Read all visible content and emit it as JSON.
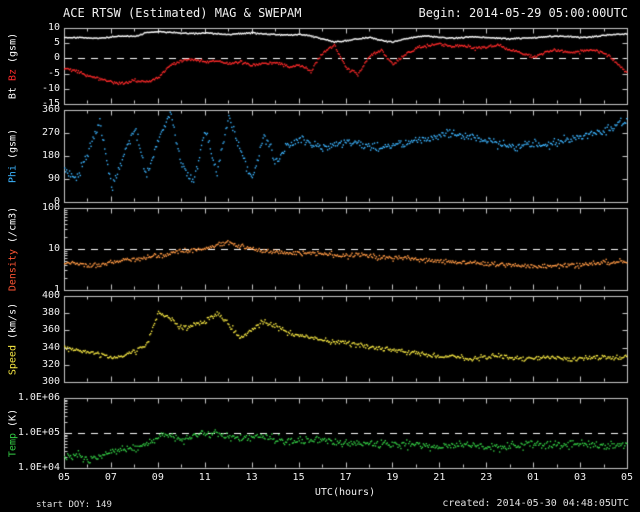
{
  "footer": {
    "start_doy": "start DOY: 149",
    "created": "created: 2014-05-30 04:48:05UTC"
  },
  "chart_data": {
    "type": "scatter",
    "title": "ACE RTSW (Estimated) MAG & SWEPAM",
    "begin": "Begin: 2014-05-29 05:00:00UTC",
    "xlabel": "UTC(hours)",
    "x_start_hour": 5,
    "x_end_hour": 29,
    "x_major_ticks": [
      "05",
      "07",
      "09",
      "11",
      "13",
      "15",
      "17",
      "19",
      "21",
      "23",
      "01",
      "03",
      "05"
    ],
    "grid": false,
    "background": "#000000",
    "frame_color": "#c8c8c8",
    "panels": [
      {
        "id": "mag",
        "scale": "linear",
        "ylim": [
          -15,
          10
        ],
        "dashed_y": 0,
        "yticks": [
          {
            "v": 10,
            "label": "10"
          },
          {
            "v": 5,
            "label": "5"
          },
          {
            "v": 0,
            "label": "0"
          },
          {
            "v": -5,
            "label": "-5"
          },
          {
            "v": -10,
            "label": "-10"
          },
          {
            "v": -15,
            "label": "-15"
          }
        ],
        "ylabel_parts": [
          {
            "text": "Bt ",
            "color": "#ffffff"
          },
          {
            "text": "Bz ",
            "color": "#ff2a2a"
          },
          {
            "text": "(gsm)",
            "color": "#ffffff"
          }
        ],
        "series": [
          {
            "name": "Bt",
            "color": "#ffffff",
            "noise": 0.2,
            "values": [
              7.0,
              7.1,
              6.9,
              6.8,
              7.3,
              7.6,
              7.4,
              8.7,
              9.0,
              8.8,
              8.5,
              8.4,
              8.6,
              8.3,
              8.1,
              8.4,
              8.6,
              8.3,
              8.1,
              7.9,
              8.1,
              7.6,
              6.6,
              5.6,
              6.1,
              6.6,
              7.1,
              6.1,
              5.6,
              6.6,
              7.3,
              7.6,
              7.1,
              6.9,
              7.1,
              7.3,
              7.1,
              6.9,
              6.6,
              6.9,
              7.1,
              7.3,
              7.6,
              7.4,
              7.1,
              7.3,
              7.9,
              8.1,
              8.3
            ]
          },
          {
            "name": "Bz",
            "color": "#ff2a2a",
            "noise": 0.5,
            "values": [
              -3.0,
              -4.0,
              -5.5,
              -6.5,
              -7.5,
              -8.0,
              -7.0,
              -7.6,
              -6.0,
              -2.0,
              -0.5,
              0.0,
              -1.0,
              -0.6,
              -1.5,
              -1.0,
              -2.0,
              -1.5,
              -1.0,
              -2.5,
              -2.0,
              -4.0,
              2.0,
              4.5,
              -3.0,
              -5.0,
              1.0,
              3.0,
              -2.0,
              1.5,
              3.5,
              4.5,
              5.0,
              4.0,
              4.5,
              3.5,
              4.0,
              4.5,
              3.0,
              2.0,
              0.5,
              2.5,
              3.0,
              2.0,
              2.5,
              3.0,
              2.0,
              -1.0,
              -5.0
            ]
          }
        ]
      },
      {
        "id": "phi",
        "scale": "linear",
        "ylim": [
          0,
          360
        ],
        "dashed_y": null,
        "yticks": [
          {
            "v": 360,
            "label": "360"
          },
          {
            "v": 270,
            "label": "270"
          },
          {
            "v": 180,
            "label": "180"
          },
          {
            "v": 90,
            "label": "90"
          },
          {
            "v": 0,
            "label": "0"
          }
        ],
        "ylabel_parts": [
          {
            "text": "Phi ",
            "color": "#3cb4ff"
          },
          {
            "text": "(gsm)",
            "color": "#ffffff"
          }
        ],
        "series": [
          {
            "name": "Phi",
            "color": "#3cb4ff",
            "noise": 18,
            "values": [
              135,
              90,
              200,
              320,
              60,
              180,
              300,
              100,
              250,
              350,
              150,
              80,
              280,
              120,
              330,
              200,
              90,
              270,
              160,
              220,
              250,
              230,
              210,
              225,
              240,
              230,
              220,
              215,
              225,
              235,
              245,
              255,
              265,
              270,
              260,
              250,
              240,
              230,
              225,
              220,
              230,
              225,
              235,
              245,
              260,
              270,
              280,
              300,
              315
            ]
          }
        ]
      },
      {
        "id": "density",
        "scale": "log",
        "ylim": [
          1,
          100
        ],
        "dashed_y": 10,
        "yticks": [
          {
            "v": 100,
            "label": "100"
          },
          {
            "v": 10,
            "label": "10"
          },
          {
            "v": 1,
            "label": "1"
          }
        ],
        "ylabel_parts": [
          {
            "text": "Density ",
            "color": "#ff5533"
          },
          {
            "text": "(/cm3)",
            "color": "#ffffff"
          }
        ],
        "series": [
          {
            "name": "Density",
            "color": "#ff9944",
            "noise": 0.06,
            "values": [
              5.0,
              4.5,
              4.0,
              4.5,
              5.0,
              5.5,
              6.0,
              6.5,
              7.0,
              8.0,
              9.0,
              10.0,
              11.0,
              13.0,
              15.0,
              12.0,
              10.0,
              9.5,
              9.0,
              8.5,
              8.0,
              8.5,
              8.0,
              7.5,
              7.0,
              7.5,
              7.0,
              6.5,
              6.0,
              6.5,
              6.0,
              5.5,
              5.5,
              5.0,
              5.0,
              4.8,
              4.5,
              4.5,
              4.2,
              4.0,
              4.0,
              3.8,
              4.0,
              4.2,
              4.0,
              4.5,
              4.8,
              5.0,
              5.2
            ]
          }
        ]
      },
      {
        "id": "speed",
        "scale": "linear",
        "ylim": [
          300,
          400
        ],
        "dashed_y": null,
        "yticks": [
          {
            "v": 400,
            "label": "400"
          },
          {
            "v": 380,
            "label": "380"
          },
          {
            "v": 360,
            "label": "360"
          },
          {
            "v": 340,
            "label": "340"
          },
          {
            "v": 320,
            "label": "320"
          },
          {
            "v": 300,
            "label": "300"
          }
        ],
        "ylabel_parts": [
          {
            "text": "Speed ",
            "color": "#f5e642"
          },
          {
            "text": "(km/s)",
            "color": "#ffffff"
          }
        ],
        "series": [
          {
            "name": "Speed",
            "color": "#f5e642",
            "noise": 3,
            "values": [
              340,
              338,
              336,
              333,
              330,
              332,
              336,
              345,
              383,
              375,
              362,
              368,
              372,
              380,
              368,
              352,
              362,
              372,
              365,
              358,
              355,
              352,
              350,
              348,
              346,
              344,
              342,
              340,
              338,
              336,
              334,
              332,
              330,
              331,
              329,
              328,
              330,
              331,
              329,
              327,
              328,
              330,
              329,
              327,
              328,
              330,
              329,
              328,
              331
            ]
          }
        ]
      },
      {
        "id": "temp",
        "scale": "log",
        "ylim": [
          10000,
          1000000
        ],
        "dashed_y": 100000,
        "yticks": [
          {
            "v": 1000000,
            "label": "1.0E+06"
          },
          {
            "v": 100000,
            "label": "1.0E+05"
          },
          {
            "v": 10000,
            "label": "1.0E+04"
          }
        ],
        "ylabel_parts": [
          {
            "text": "Temp ",
            "color": "#33cc44"
          },
          {
            "text": "(K)",
            "color": "#ffffff"
          }
        ],
        "series": [
          {
            "name": "Temp",
            "color": "#33cc44",
            "noise": 0.12,
            "values": [
              20000,
              25000,
              18000,
              22000,
              30000,
              35000,
              40000,
              50000,
              80000,
              90000,
              70000,
              80000,
              95000,
              100000,
              85000,
              70000,
              75000,
              80000,
              70000,
              65000,
              60000,
              65000,
              70000,
              60000,
              55000,
              50000,
              55000,
              50000,
              45000,
              50000,
              48000,
              45000,
              42000,
              45000,
              48000,
              45000,
              42000,
              40000,
              45000,
              48000,
              50000,
              48000,
              45000,
              50000,
              52000,
              48000,
              45000,
              50000,
              52000
            ]
          }
        ]
      }
    ]
  }
}
